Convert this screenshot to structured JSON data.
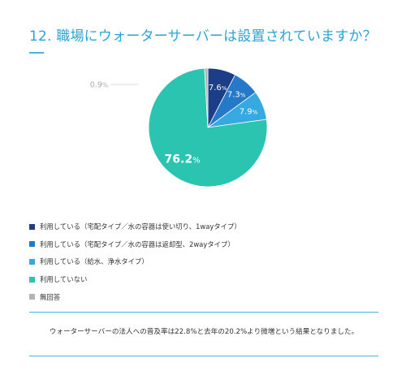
{
  "title": "12. 職場にウォーターサーバーは設置されていますか？",
  "chart_data": {
    "type": "pie",
    "start_angle_deg": 0,
    "direction": "clockwise",
    "slices": [
      {
        "label": "利用している（宅配タイプ／水の容器は使い切り、1wayタイプ）",
        "value": 7.6,
        "display_num": "7.6",
        "display_unit": "%",
        "color": "#1b3e86"
      },
      {
        "label": "利用している（宅配タイプ／水の容器は返却型、2wayタイプ）",
        "value": 7.3,
        "display_num": "7.3",
        "display_unit": "%",
        "color": "#2678c9"
      },
      {
        "label": "利用している（給水、浄水タイプ）",
        "value": 7.9,
        "display_num": "7.9",
        "display_unit": "%",
        "color": "#36a9e1"
      },
      {
        "label": "利用していない",
        "value": 76.2,
        "display_num": "76.2",
        "display_unit": "%",
        "color": "#2bc4b0"
      },
      {
        "label": "無回答",
        "value": 0.9,
        "display_num": "0.9",
        "display_unit": "%",
        "color": "#b3b3b3"
      }
    ]
  },
  "summary": "ウォーターサーバーの法人への普及率は22.8%と去年の20.2%より微増という結果となりました。"
}
